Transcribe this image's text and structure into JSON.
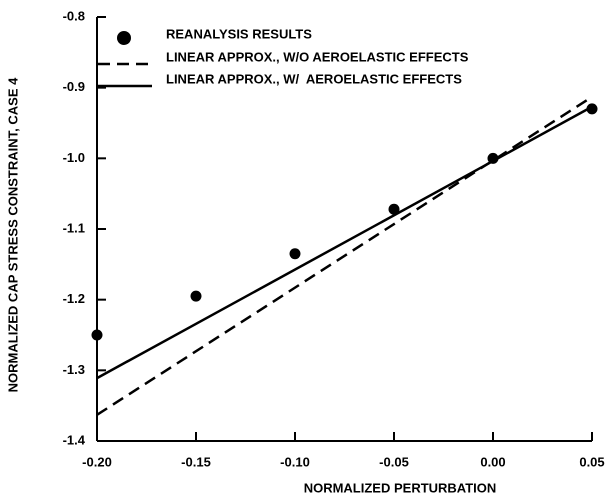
{
  "chart_data": {
    "type": "line",
    "xlabel": "NORMALIZED PERTURBATION",
    "ylabel": "NORMALIZED CAP STRESS CONSTRAINT, CASE 4",
    "xlim": [
      -0.2,
      0.05
    ],
    "xticks": [
      {
        "value": -0.2,
        "label": "-0.20"
      },
      -0.15,
      {
        "value": -0.1,
        "label": "-0.10"
      },
      -0.05,
      {
        "value": 0,
        "label": "0.00"
      },
      0.05
    ],
    "ylim": [
      -1.4,
      -0.8
    ],
    "yticks": [
      -1.4,
      -1.3,
      -1.2,
      -1.1,
      {
        "value": -1.0,
        "label": "-1.0"
      },
      -0.9,
      -0.8
    ],
    "series": [
      {
        "name": "REANALYSIS RESULTS",
        "color": "#000000",
        "style": "markers",
        "x": [
          -0.2,
          -0.15,
          -0.1,
          -0.05,
          0,
          0.05
        ],
        "values": [
          -1.25,
          -1.195,
          -1.135,
          -1.072,
          -1.0,
          -0.93
        ]
      },
      {
        "name": "LINEAR APPROX., W/O AEROELASTIC EFFECTS",
        "color": "#000000",
        "style": "dashed",
        "x": [
          -0.2,
          0.05
        ],
        "values": [
          -1.363,
          -0.913
        ]
      },
      {
        "name": "LINEAR APPROX., W/  AEROELASTIC EFFECTS",
        "color": "#000000",
        "style": "solid",
        "x": [
          -0.2,
          0.05
        ],
        "values": [
          -1.311,
          -0.927
        ]
      }
    ]
  }
}
